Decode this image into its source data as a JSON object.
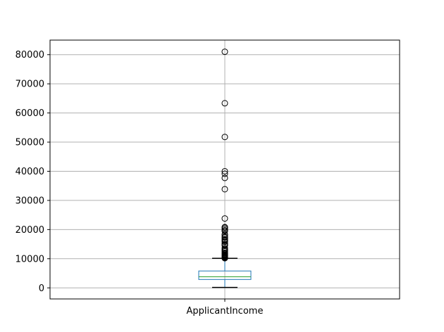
{
  "chart_data": {
    "type": "box",
    "title": "",
    "xlabel": "",
    "ylabel": "",
    "grid": true,
    "categories": [
      "ApplicantIncome"
    ],
    "ylim": [
      -3800,
      85000
    ],
    "yticks": [
      0,
      10000,
      20000,
      30000,
      40000,
      50000,
      60000,
      70000,
      80000
    ],
    "ytick_labels": [
      "0",
      "10000",
      "20000",
      "30000",
      "40000",
      "50000",
      "60000",
      "70000",
      "80000"
    ],
    "box": {
      "min": 150,
      "q1": 2878,
      "median": 3812,
      "q3": 5795,
      "whisker_high": 10139
    },
    "outliers": [
      81000,
      63337,
      51763,
      39999,
      39147,
      37719,
      33846,
      23803,
      20833,
      20667,
      20233,
      19730,
      19484,
      18333,
      18165,
      17500,
      17263,
      16692,
      16666,
      16250,
      16120,
      15759,
      15000,
      14999,
      14880,
      14866,
      14683,
      14583,
      13650,
      13262,
      12876,
      12841,
      12500,
      12000,
      11757,
      11500,
      11417,
      11250,
      11146,
      11000,
      10833,
      10750,
      10513,
      10408,
      10383,
      10171
    ],
    "colors": {
      "box": "#1f77b4",
      "median": "#2ca02c",
      "whisker": "#000000",
      "grid": "#b0b0b0",
      "outlier": "#000000"
    }
  }
}
